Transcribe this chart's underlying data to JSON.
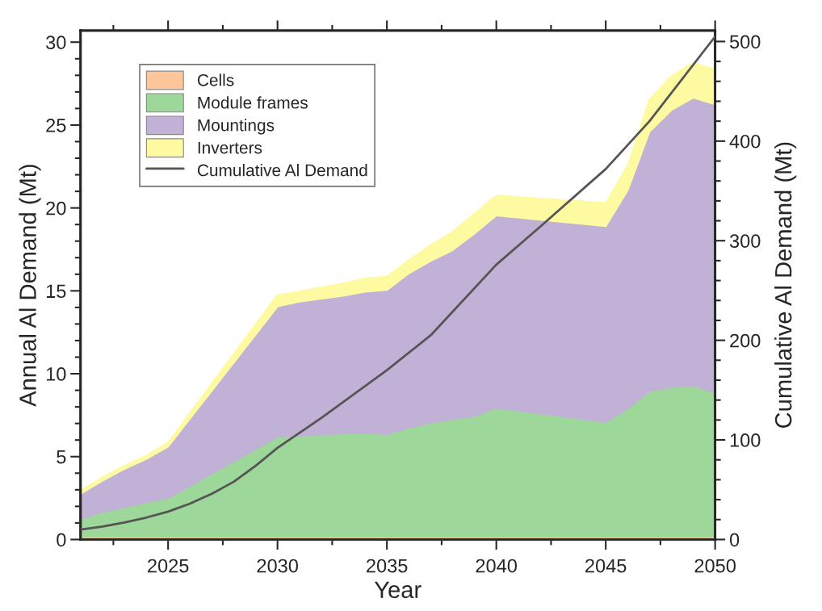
{
  "chart_data": {
    "type": "area",
    "stacked": true,
    "xlabel": "Year",
    "ylabel": "Annual Al Demand (Mt)",
    "y2label": "Cumulative Al Demand (Mt)",
    "x": [
      2021,
      2022,
      2023,
      2024,
      2025,
      2030,
      2031,
      2033,
      2034,
      2035,
      2036,
      2037,
      2038,
      2039,
      2040,
      2045,
      2046,
      2047,
      2048,
      2049,
      2050
    ],
    "xlim": [
      2021,
      2050
    ],
    "xticks": [
      2025,
      2030,
      2035,
      2040,
      2045,
      2050
    ],
    "ylim": [
      0,
      30.7
    ],
    "yticks": [
      0,
      5,
      10,
      15,
      20,
      25,
      30
    ],
    "y2lim": [
      0,
      511
    ],
    "y2ticks": [
      0,
      100,
      200,
      300,
      400,
      500
    ],
    "legend": "top left",
    "grid": false,
    "series": [
      {
        "name": "Cells",
        "color": "#fdc69a",
        "values": [
          0.05,
          0.05,
          0.05,
          0.05,
          0.05,
          0.05,
          0.05,
          0.05,
          0.05,
          0.05,
          0.05,
          0.05,
          0.05,
          0.05,
          0.05,
          0.05,
          0.05,
          0.05,
          0.05,
          0.05,
          0.05
        ]
      },
      {
        "name": "Module frames",
        "color": "#9dd79a",
        "values": [
          1.2,
          1.6,
          1.9,
          2.2,
          2.45,
          6.15,
          6.2,
          6.35,
          6.4,
          6.3,
          6.7,
          7.0,
          7.2,
          7.4,
          7.9,
          7.05,
          7.85,
          8.9,
          9.15,
          9.25,
          8.8
        ]
      },
      {
        "name": "Mountings",
        "color": "#c1b1d6",
        "values": [
          1.5,
          1.9,
          2.3,
          2.6,
          3.1,
          7.85,
          8.1,
          8.3,
          8.5,
          8.7,
          9.3,
          9.75,
          10.2,
          11.0,
          11.6,
          11.8,
          13.15,
          15.65,
          16.7,
          17.35,
          17.4
        ]
      },
      {
        "name": "Inverters",
        "color": "#fdfaa1",
        "values": [
          0.2,
          0.2,
          0.2,
          0.2,
          0.25,
          0.7,
          0.6,
          0.75,
          0.8,
          0.8,
          0.8,
          0.95,
          1.1,
          1.2,
          1.2,
          1.4,
          1.5,
          1.95,
          2.05,
          2.1,
          2.1
        ]
      },
      {
        "name": "Cumulative Al Demand",
        "type": "line",
        "axis": "y2",
        "color": "#555555",
        "line_style": "solid",
        "x": [
          2021,
          2022,
          2023,
          2024,
          2025,
          2026,
          2027,
          2028,
          2029,
          2030,
          2032,
          2035,
          2037,
          2040,
          2042,
          2045,
          2047,
          2050
        ],
        "values": [
          10,
          13,
          17,
          22,
          28,
          36,
          46,
          58,
          74,
          92,
          122,
          170,
          205,
          276,
          314,
          372,
          420,
          505
        ]
      }
    ]
  }
}
